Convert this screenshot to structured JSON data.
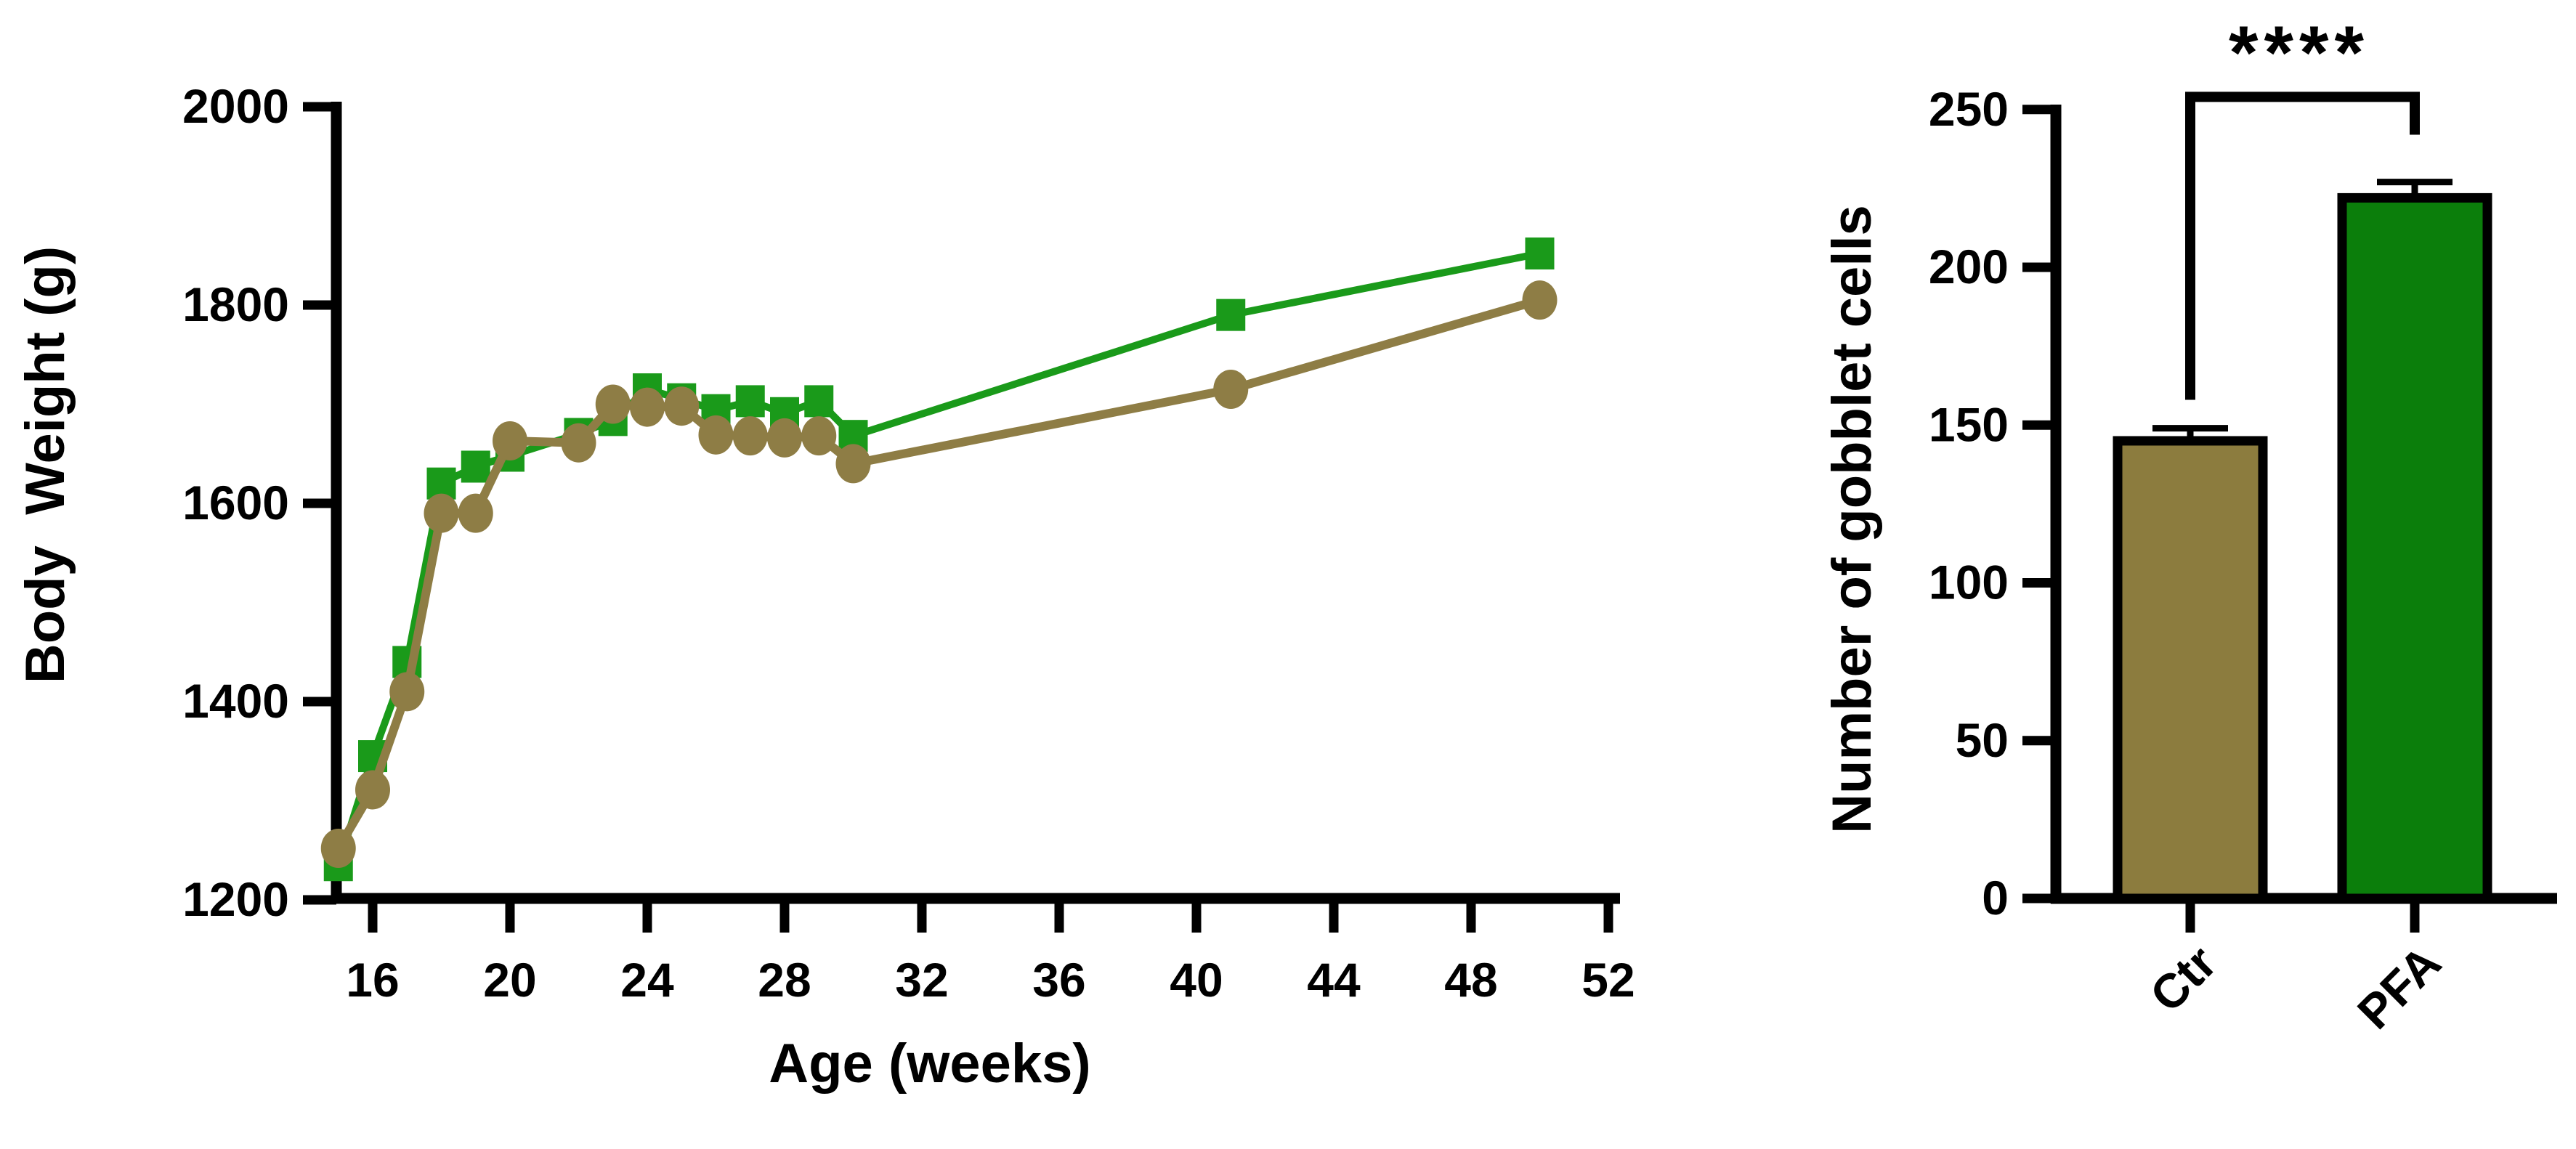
{
  "figure": {
    "background": "#ffffff",
    "accent_green": "#149414",
    "accent_olive": "#8e7d45"
  },
  "chart_data": [
    {
      "type": "line",
      "title": "",
      "xlabel": "Age (weeks)",
      "ylabel": "Body  Weight (g)",
      "x_ticks": [
        16,
        20,
        24,
        28,
        32,
        36,
        40,
        44,
        48,
        52
      ],
      "y_ticks": [
        1200,
        1400,
        1600,
        1800,
        2000
      ],
      "xlim": [
        14.9,
        52.3
      ],
      "ylim": [
        1200,
        2000
      ],
      "grid": false,
      "legend": "none",
      "series": [
        {
          "name": "PFA",
          "color": "#1a9a1a",
          "marker": "square",
          "x": [
            15,
            16,
            17,
            18,
            19,
            20,
            22,
            23,
            24,
            25,
            26,
            27,
            28,
            29,
            30,
            41,
            50
          ],
          "y": [
            1235,
            1345,
            1440,
            1620,
            1637,
            1648,
            1670,
            1684,
            1715,
            1705,
            1694,
            1703,
            1691,
            1703,
            1668,
            1790,
            1852
          ]
        },
        {
          "name": "Ctr",
          "color": "#8e7d45",
          "marker": "circle",
          "x": [
            15,
            16,
            17,
            18,
            19,
            20,
            22,
            23,
            24,
            25,
            26,
            27,
            28,
            29,
            30,
            41,
            50
          ],
          "y": [
            1252,
            1311,
            1410,
            1590,
            1590,
            1663,
            1661,
            1700,
            1697,
            1698,
            1669,
            1668,
            1666,
            1668,
            1640,
            1715,
            1805
          ]
        }
      ]
    },
    {
      "type": "bar",
      "title": "",
      "xlabel": "",
      "ylabel": "Number of gobblet cells",
      "categories": [
        "Ctr",
        "PFA"
      ],
      "values": [
        145,
        222
      ],
      "error_upper": [
        4,
        5
      ],
      "bar_colors": [
        "#8c7c3e",
        "#0b7e0b"
      ],
      "y_ticks": [
        0,
        50,
        100,
        150,
        200,
        250
      ],
      "ylim": [
        0,
        250
      ],
      "grid": false,
      "significance": "****",
      "bracket": {
        "left_end": 158,
        "top": 254,
        "right_end": 242
      }
    }
  ]
}
